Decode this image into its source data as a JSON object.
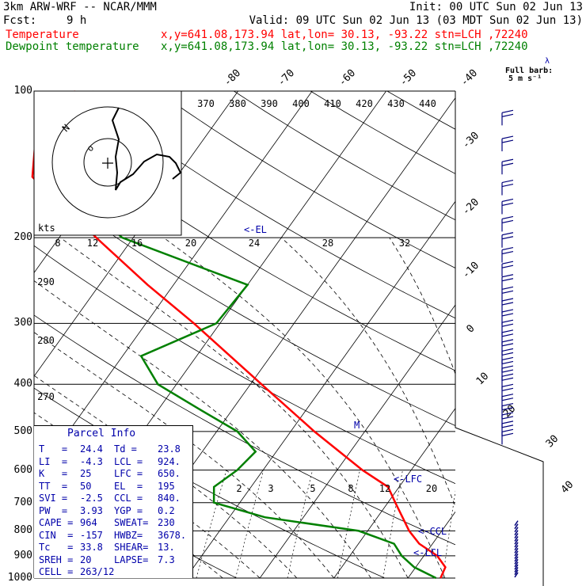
{
  "header": {
    "model": "3km ARW-WRF -- NCAR/MMM",
    "init": "Init: 00 UTC Sun 02 Jun 13",
    "fcst_label": "Fcst:",
    "fcst_value": "9 h",
    "valid": "Valid: 09 UTC Sun 02 Jun 13 (03 MDT Sun 02 Jun 13)",
    "temp_label": "Temperature",
    "dew_label": "Dewpoint temperature",
    "loc_info": "x,y=641.08,173.94   lat,lon= 30.13, -93.22  stn=LCH ,72240"
  },
  "hodograph": {
    "kts_label": "kts",
    "ring_labels": [
      "N",
      "o"
    ]
  },
  "wind_legend": {
    "full_barb": "Full barb:",
    "speed": "5 m s⁻¹",
    "lambda": "λ"
  },
  "parcel_info": {
    "title": "Parcel Info",
    "rows": [
      [
        "T   =",
        "24.4",
        "Td =",
        "23.8"
      ],
      [
        "LI  =",
        "-4.3",
        "LCL =",
        "924."
      ],
      [
        "K   =",
        "25",
        "LFC =",
        "650."
      ],
      [
        "TT  =",
        "50",
        "EL  =",
        "195"
      ],
      [
        "SVI =",
        "-2.5",
        "CCL =",
        "840."
      ],
      [
        "PW  =",
        "3.93",
        "YGP =",
        "0.2"
      ],
      [
        "CAPE =",
        "964",
        "SWEAT=",
        "230"
      ],
      [
        "CIN  =",
        "-157",
        "HWBZ=",
        "3678."
      ],
      [
        "Tc   =",
        "33.8",
        "SHEAR=",
        "13."
      ],
      [
        "SREH =",
        "20",
        "LAPSE=",
        "7.3"
      ],
      [
        "CELL =",
        "263/12",
        "",
        ""
      ]
    ]
  },
  "colors": {
    "temperature": "#ff0000",
    "dewpoint": "#008000",
    "parcel_text": "#0000aa",
    "wind_barbs": "#00007a",
    "background": "#ffffff",
    "grid": "#000000"
  },
  "chart_data": {
    "type": "skew-t",
    "pressure_levels": [
      100,
      200,
      300,
      400,
      500,
      600,
      700,
      800,
      900,
      1000
    ],
    "pressure_labels": [
      "100",
      "200",
      "300",
      "400",
      "500",
      "600",
      "700",
      "800",
      "900",
      "1000"
    ],
    "isotherms_deg_c": [
      -80,
      -70,
      -60,
      -50,
      -40,
      -30,
      -20,
      -10,
      0,
      10,
      20,
      30,
      40
    ],
    "isotherm_labels": [
      "-80",
      "-70",
      "-60",
      "-50",
      "-40",
      "-30",
      "-20",
      "-10",
      "0",
      "10",
      "20",
      "30",
      "40"
    ],
    "potential_temp_labels_k": [
      "370",
      "380",
      "390",
      "400",
      "410",
      "420",
      "430",
      "440"
    ],
    "dry_adiabat_labels_k": [
      "290",
      "280",
      "270"
    ],
    "mixing_ratio_labels": [
      "2",
      "3",
      "5",
      "8",
      "12",
      "20"
    ],
    "hodograph_speed_labels": [
      "8",
      "12",
      "16",
      "20",
      "24",
      "28",
      "32"
    ],
    "annotations": [
      "<-EL",
      "<-LFC",
      "<-CCL",
      "<-LCL",
      "M"
    ],
    "series": [
      {
        "name": "Temperature",
        "points": [
          [
            1000,
            24.4
          ],
          [
            950,
            24.0
          ],
          [
            900,
            21.8
          ],
          [
            850,
            18.2
          ],
          [
            800,
            15.6
          ],
          [
            700,
            11.0
          ],
          [
            650,
            8.5
          ],
          [
            600,
            3.4
          ],
          [
            500,
            -6.8
          ],
          [
            400,
            -18.5
          ],
          [
            300,
            -33.5
          ],
          [
            250,
            -43.5
          ],
          [
            200,
            -55.0
          ],
          [
            175,
            -61.5
          ],
          [
            160,
            -66.5
          ],
          [
            150,
            -69.5
          ],
          [
            125,
            -72.8
          ],
          [
            110,
            -72.4
          ],
          [
            100,
            -72.0
          ]
        ]
      },
      {
        "name": "Dewpoint temperature",
        "points": [
          [
            1000,
            23.8
          ],
          [
            950,
            19.8
          ],
          [
            900,
            17.0
          ],
          [
            850,
            14.8
          ],
          [
            800,
            8.8
          ],
          [
            750,
            -5.2
          ],
          [
            700,
            -13.5
          ],
          [
            650,
            -15.0
          ],
          [
            600,
            -13.5
          ],
          [
            550,
            -12.8
          ],
          [
            500,
            -17.2
          ],
          [
            450,
            -24.5
          ],
          [
            400,
            -32.5
          ],
          [
            350,
            -37.5
          ],
          [
            300,
            -30.5
          ],
          [
            250,
            -30.0
          ],
          [
            200,
            -51.5
          ],
          [
            150,
            -66.5
          ],
          [
            110,
            -69.0
          ],
          [
            100,
            -69.5
          ]
        ]
      }
    ],
    "winds": {
      "pressures": [
        115,
        130,
        145,
        160,
        175,
        190,
        205,
        220,
        235,
        250,
        265,
        280,
        295,
        310,
        325,
        340,
        355,
        370,
        385,
        400,
        420,
        440,
        460,
        480,
        500,
        520
      ],
      "note": "wind barbs along right margin; surface winds shown as flags near 800-1000 hPa"
    }
  }
}
